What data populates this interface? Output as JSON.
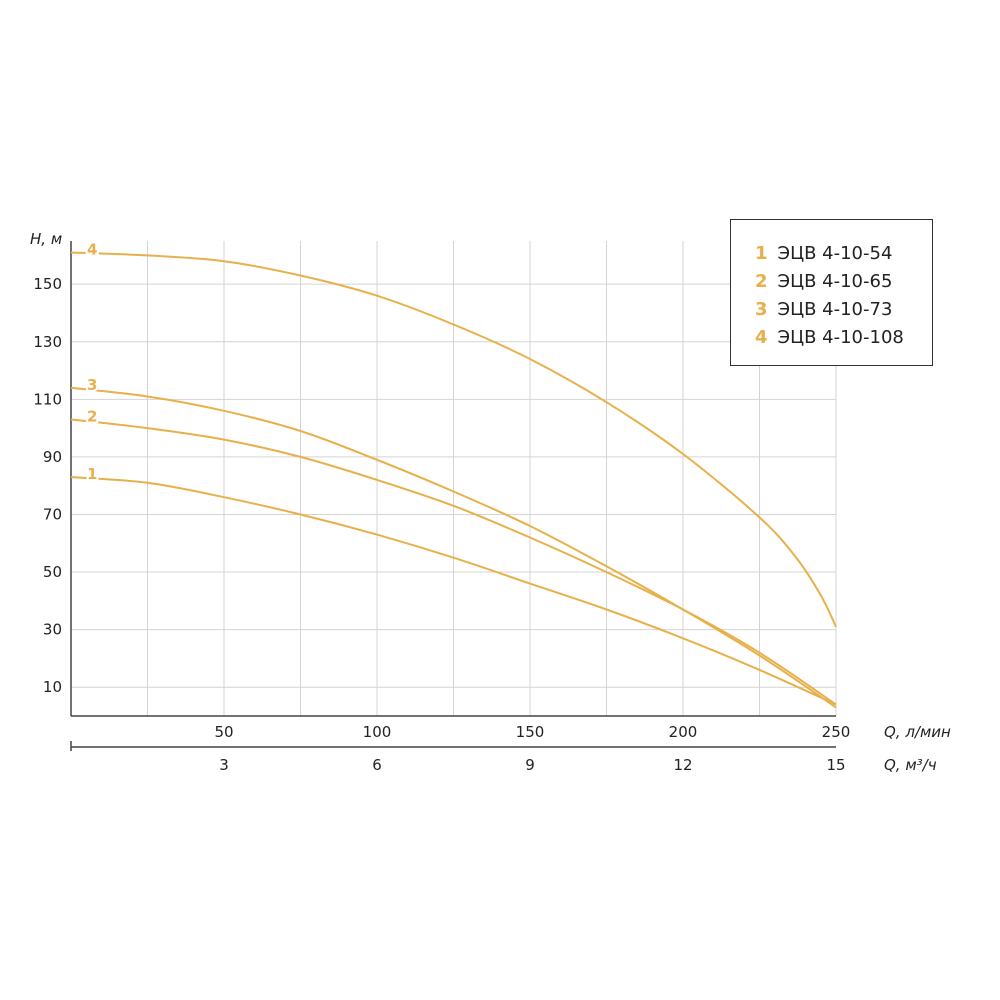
{
  "chart_data": {
    "type": "line",
    "ylabel": "H, м",
    "xlabel": "Q, л/мин",
    "xlabel2": "Q, м³/ч",
    "xlim": [
      0,
      250
    ],
    "ylim": [
      0,
      165
    ],
    "yticks": [
      10,
      30,
      50,
      70,
      90,
      110,
      130,
      150
    ],
    "xticks_lmin": [
      50,
      100,
      150,
      200,
      250
    ],
    "xticks_m3h": [
      3,
      6,
      9,
      12,
      15
    ],
    "grid": true,
    "legend_position": "top-right",
    "curve_color": "#e8b04a",
    "series": [
      {
        "name": "ЭЦВ 4-10-54",
        "number": "1",
        "x": [
          0,
          25,
          50,
          75,
          100,
          125,
          150,
          175,
          200,
          225,
          250
        ],
        "y": [
          83,
          81,
          76,
          70,
          63,
          55,
          46,
          37,
          27,
          16,
          4
        ]
      },
      {
        "name": "ЭЦВ 4-10-65",
        "number": "2",
        "x": [
          0,
          25,
          50,
          75,
          100,
          125,
          150,
          175,
          200,
          225,
          250
        ],
        "y": [
          103,
          100,
          96,
          90,
          82,
          73,
          62,
          50,
          37,
          22,
          4
        ]
      },
      {
        "name": "ЭЦВ 4-10-73",
        "number": "3",
        "x": [
          0,
          25,
          50,
          75,
          100,
          125,
          150,
          175,
          200,
          225,
          250
        ],
        "y": [
          114,
          111,
          106,
          99,
          89,
          78,
          66,
          52,
          37,
          21,
          3
        ]
      },
      {
        "name": "ЭЦВ 4-10-108",
        "number": "4",
        "x": [
          0,
          25,
          50,
          75,
          100,
          125,
          150,
          175,
          200,
          225,
          237,
          245,
          250
        ],
        "y": [
          161,
          160,
          158,
          153,
          146,
          136,
          124,
          109,
          91,
          69,
          55,
          42,
          31
        ]
      }
    ]
  }
}
